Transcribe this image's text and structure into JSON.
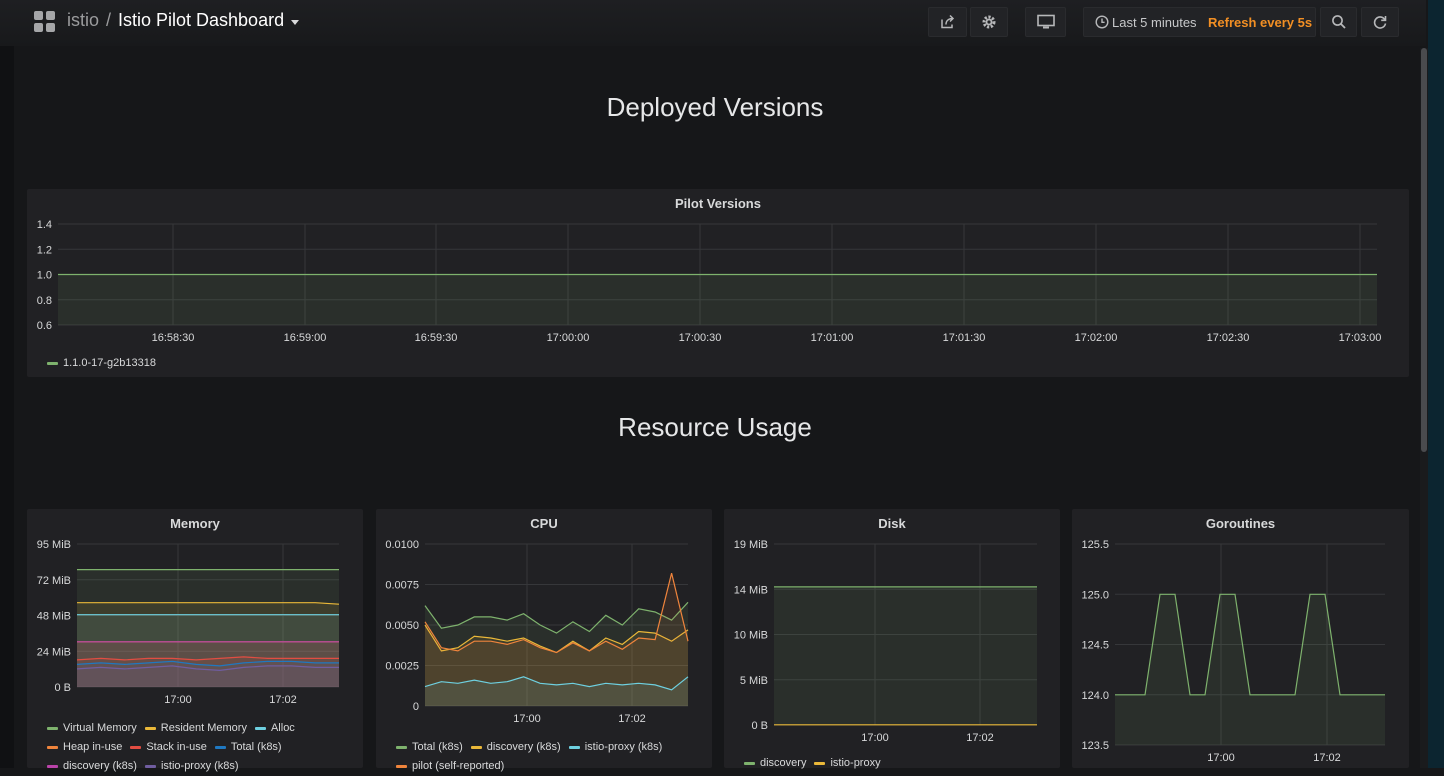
{
  "header": {
    "folder": "istio",
    "separator": "/",
    "dashboard_title": "Istio Pilot Dashboard",
    "time_range": "Last 5 minutes",
    "refresh": "Refresh every 5s",
    "icons": [
      "share-icon",
      "gear-icon",
      "monitor-icon",
      "clock-icon",
      "zoom-out-icon",
      "refresh-icon"
    ]
  },
  "rows": [
    {
      "title": "Deployed Versions"
    },
    {
      "title": "Resource Usage"
    }
  ],
  "colors": {
    "green": "#7eb26d",
    "yellow": "#eab839",
    "cyan": "#6ed0e0",
    "orange": "#ef843c",
    "red": "#e24d42",
    "blue": "#1f78c1",
    "pink": "#ba43a9",
    "purple": "#705da0"
  },
  "panels": {
    "pilot_versions": {
      "title": "Pilot Versions",
      "legend": [
        {
          "name": "1.1.0-17-g2b13318",
          "color": "#7eb26d"
        }
      ],
      "chart_data": {
        "type": "line",
        "x_ticks": [
          "16:58:30",
          "16:59:00",
          "16:59:30",
          "17:00:00",
          "17:00:30",
          "17:01:00",
          "17:01:30",
          "17:02:00",
          "17:02:30",
          "17:03:00"
        ],
        "y_ticks": [
          "1.4",
          "1.2",
          "1.0",
          "0.8",
          "0.6"
        ],
        "ylim": [
          0.6,
          1.4
        ],
        "series": [
          {
            "name": "1.1.0-17-g2b13318",
            "values": [
              1,
              1,
              1,
              1,
              1,
              1,
              1,
              1,
              1,
              1,
              1
            ]
          }
        ]
      }
    },
    "memory": {
      "title": "Memory",
      "legend": [
        {
          "name": "Virtual Memory",
          "color": "#7eb26d"
        },
        {
          "name": "Resident Memory",
          "color": "#eab839"
        },
        {
          "name": "Alloc",
          "color": "#6ed0e0"
        },
        {
          "name": "Heap in-use",
          "color": "#ef843c"
        },
        {
          "name": "Stack in-use",
          "color": "#e24d42"
        },
        {
          "name": "Total (k8s)",
          "color": "#1f78c1"
        },
        {
          "name": "discovery (k8s)",
          "color": "#ba43a9"
        },
        {
          "name": "istio-proxy (k8s)",
          "color": "#705da0"
        }
      ],
      "chart_data": {
        "type": "area",
        "x_ticks": [
          "17:00",
          "17:02"
        ],
        "y_ticks": [
          "95 MiB",
          "72 MiB",
          "48 MiB",
          "24 MiB",
          "0 B"
        ],
        "ylim": [
          0,
          95
        ],
        "series": [
          {
            "name": "Virtual Memory",
            "values": [
              78,
              78,
              78,
              78,
              78,
              78,
              78,
              78,
              78,
              78,
              78,
              78
            ]
          },
          {
            "name": "Resident Memory",
            "values": [
              56,
              56,
              56,
              56,
              56,
              56,
              56,
              56,
              56,
              56,
              56,
              55
            ]
          },
          {
            "name": "Alloc",
            "values": [
              48,
              48,
              48,
              48,
              48,
              48,
              48,
              48,
              48,
              48,
              48,
              48
            ]
          },
          {
            "name": "Heap in-use",
            "values": [
              30,
              30,
              30,
              30,
              30,
              30,
              30,
              30,
              30,
              30,
              30,
              30
            ]
          },
          {
            "name": "discovery (k8s)",
            "values": [
              30,
              30,
              30,
              30,
              30,
              30,
              30,
              30,
              30,
              30,
              30,
              30
            ]
          },
          {
            "name": "Stack in-use",
            "values": [
              18,
              19,
              18,
              19,
              19,
              18,
              19,
              20,
              19,
              19,
              19,
              19
            ]
          },
          {
            "name": "Total (k8s)",
            "values": [
              15,
              16,
              15,
              16,
              17,
              15,
              14,
              16,
              17,
              17,
              16,
              16
            ]
          },
          {
            "name": "istio-proxy (k8s)",
            "values": [
              12,
              13,
              12,
              13,
              14,
              12,
              11,
              13,
              14,
              14,
              13,
              13
            ]
          }
        ]
      }
    },
    "cpu": {
      "title": "CPU",
      "legend": [
        {
          "name": "Total (k8s)",
          "color": "#7eb26d"
        },
        {
          "name": "discovery (k8s)",
          "color": "#eab839"
        },
        {
          "name": "istio-proxy (k8s)",
          "color": "#6ed0e0"
        },
        {
          "name": "pilot (self-reported)",
          "color": "#ef843c"
        }
      ],
      "chart_data": {
        "type": "area",
        "x_ticks": [
          "17:00",
          "17:02"
        ],
        "y_ticks": [
          "0.0100",
          "0.0075",
          "0.0050",
          "0.0025",
          "0"
        ],
        "ylim": [
          0,
          0.01
        ],
        "series": [
          {
            "name": "Total (k8s)",
            "values": [
              0.0062,
              0.0048,
              0.005,
              0.0055,
              0.0055,
              0.0053,
              0.0057,
              0.005,
              0.0045,
              0.0052,
              0.0046,
              0.0056,
              0.005,
              0.006,
              0.0058,
              0.0053,
              0.0064
            ]
          },
          {
            "name": "discovery (k8s)",
            "values": [
              0.005,
              0.0034,
              0.0036,
              0.0043,
              0.0042,
              0.004,
              0.0042,
              0.0037,
              0.0033,
              0.004,
              0.0034,
              0.0042,
              0.0038,
              0.0046,
              0.0045,
              0.004,
              0.0047
            ]
          },
          {
            "name": "pilot (self-reported)",
            "values": [
              0.0052,
              0.0036,
              0.0034,
              0.004,
              0.004,
              0.0038,
              0.0041,
              0.0036,
              0.0033,
              0.0039,
              0.0034,
              0.004,
              0.0035,
              0.0042,
              0.0041,
              0.0082,
              0.004
            ]
          },
          {
            "name": "istio-proxy (k8s)",
            "values": [
              0.0012,
              0.0015,
              0.0014,
              0.0016,
              0.0014,
              0.0015,
              0.0018,
              0.0014,
              0.0013,
              0.0014,
              0.0012,
              0.0014,
              0.0013,
              0.0014,
              0.0013,
              0.001,
              0.0018
            ]
          }
        ]
      }
    },
    "disk": {
      "title": "Disk",
      "legend": [
        {
          "name": "discovery",
          "color": "#7eb26d"
        },
        {
          "name": "istio-proxy",
          "color": "#eab839"
        }
      ],
      "chart_data": {
        "type": "area",
        "x_ticks": [
          "17:00",
          "17:02"
        ],
        "y_ticks": [
          "19 MiB",
          "14 MiB",
          "10 MiB",
          "5 MiB",
          "0 B"
        ],
        "ylim": [
          0,
          19
        ],
        "series": [
          {
            "name": "discovery",
            "values": [
              14.5,
              14.5,
              14.5,
              14.5,
              14.5,
              14.5
            ]
          },
          {
            "name": "istio-proxy",
            "values": [
              0.02,
              0.02,
              0.02,
              0.02,
              0.02,
              0.02
            ]
          }
        ]
      }
    },
    "goroutines": {
      "title": "Goroutines",
      "chart_data": {
        "type": "line",
        "x_ticks": [
          "17:00",
          "17:02"
        ],
        "y_ticks": [
          "125.5",
          "125.0",
          "124.5",
          "124.0",
          "123.5"
        ],
        "ylim": [
          123.5,
          125.5
        ],
        "series": [
          {
            "name": "",
            "values": [
              124,
              124,
              124,
              125,
              125,
              124,
              124,
              125,
              125,
              124,
              124,
              124,
              124,
              125,
              125,
              124,
              124,
              124,
              124
            ]
          }
        ]
      }
    }
  }
}
